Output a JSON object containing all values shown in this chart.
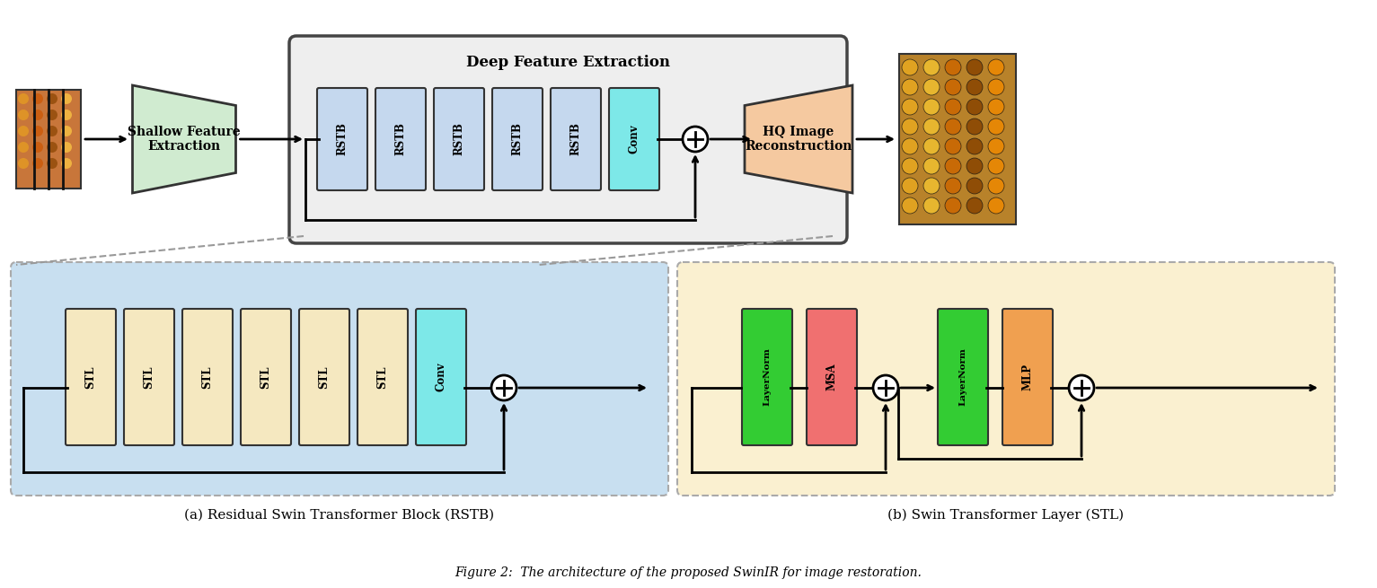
{
  "title": "Figure 2:  The architecture of the proposed SwinIR for image restoration.",
  "bg_color": "#ffffff",
  "deep_feat_box_color": "#eeeeee",
  "shallow_color": "#d0ebd0",
  "rstb_color": "#c5d8ee",
  "conv_top_color": "#7de8e8",
  "hq_color": "#f5c9a0",
  "stl_color": "#f5e8c0",
  "conv_bot_color": "#7de8e8",
  "rstb_detail_bg": "#c8dff0",
  "stl_detail_bg": "#faf0d0",
  "ln_color": "#33cc33",
  "msa_color": "#f07070",
  "mlp_color": "#f0a050",
  "rstb_labels": [
    "RSTB",
    "RSTB",
    "RSTB",
    "RSTB",
    "RSTB"
  ],
  "stl_labels": [
    "STL",
    "STL",
    "STL",
    "STL",
    "STL",
    "STL"
  ],
  "caption_left": "(a) Residual Swin Transformer Block (RSTB)",
  "caption_right": "(b) Swin Transformer Layer (STL)"
}
